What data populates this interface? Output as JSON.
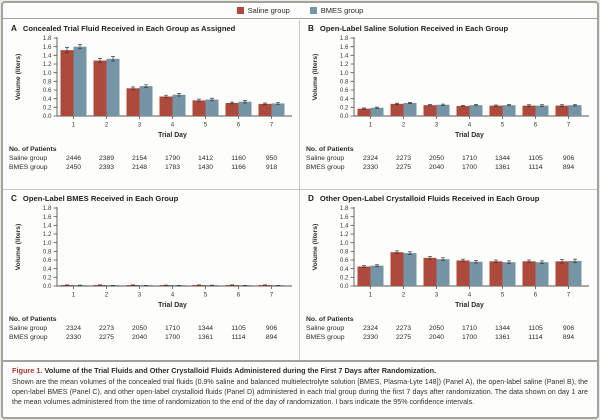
{
  "colors": {
    "saline": "#ad4a3c",
    "bmes": "#7595a6",
    "axis": "#555550",
    "text": "#3b3b3b",
    "error_bar": "#3a3a3a",
    "caption_accent": "#ad352a",
    "frame_border": "#a3a29b"
  },
  "legend": {
    "items": [
      {
        "label": "Saline group",
        "color": "#ad4a3c"
      },
      {
        "label": "BMES group",
        "color": "#7595a6"
      }
    ]
  },
  "table_labels": {
    "patients_header": "No. of Patients",
    "saline_row": "Saline group",
    "bmes_row": "BMES group"
  },
  "chart_data": [
    {
      "panel": "A",
      "type": "bar",
      "title": "Concealed Trial Fluid Received in Each Group as Assigned",
      "xlabel": "Trial Day",
      "ylabel": "Volume (liters)",
      "ylim": [
        0,
        1.8
      ],
      "ytick_step": 0.2,
      "categories": [
        "1",
        "2",
        "3",
        "4",
        "5",
        "6",
        "7"
      ],
      "series": [
        {
          "name": "Saline group",
          "values": [
            1.52,
            1.28,
            0.64,
            0.45,
            0.36,
            0.3,
            0.28
          ],
          "errors": [
            0.06,
            0.05,
            0.03,
            0.03,
            0.03,
            0.02,
            0.02
          ]
        },
        {
          "name": "BMES group",
          "values": [
            1.6,
            1.32,
            0.69,
            0.49,
            0.38,
            0.33,
            0.29
          ],
          "errors": [
            0.05,
            0.05,
            0.03,
            0.03,
            0.03,
            0.03,
            0.02
          ]
        }
      ],
      "patients": {
        "saline": [
          2446,
          2389,
          2154,
          1790,
          1412,
          1160,
          950
        ],
        "bmes": [
          2450,
          2393,
          2148,
          1783,
          1430,
          1166,
          918
        ]
      }
    },
    {
      "panel": "B",
      "type": "bar",
      "title": "Open-Label Saline Solution Received in Each Group",
      "xlabel": "Trial Day",
      "ylabel": "Volume (liters)",
      "ylim": [
        0,
        1.8
      ],
      "ytick_step": 0.2,
      "categories": [
        "1",
        "2",
        "3",
        "4",
        "5",
        "6",
        "7"
      ],
      "series": [
        {
          "name": "Saline group",
          "values": [
            0.17,
            0.28,
            0.25,
            0.23,
            0.24,
            0.24,
            0.24
          ],
          "errors": [
            0.015,
            0.015,
            0.015,
            0.015,
            0.015,
            0.02,
            0.02
          ]
        },
        {
          "name": "BMES group",
          "values": [
            0.19,
            0.3,
            0.26,
            0.25,
            0.25,
            0.24,
            0.25
          ],
          "errors": [
            0.015,
            0.015,
            0.015,
            0.015,
            0.015,
            0.02,
            0.02
          ]
        }
      ],
      "patients": {
        "saline": [
          2324,
          2273,
          2050,
          1710,
          1344,
          1105,
          906
        ],
        "bmes": [
          2330,
          2275,
          2040,
          1700,
          1361,
          1114,
          894
        ]
      }
    },
    {
      "panel": "C",
      "type": "bar",
      "title": "Open-Label BMES Received in Each Group",
      "xlabel": "Trial Day",
      "ylabel": "Volume (liters)",
      "ylim": [
        0,
        1.8
      ],
      "ytick_step": 0.2,
      "categories": [
        "1",
        "2",
        "3",
        "4",
        "5",
        "6",
        "7"
      ],
      "series": [
        {
          "name": "Saline group",
          "values": [
            0.02,
            0.02,
            0.02,
            0.015,
            0.02,
            0.02,
            0.02
          ],
          "errors": [
            0.006,
            0.006,
            0.006,
            0.005,
            0.006,
            0.006,
            0.006
          ]
        },
        {
          "name": "BMES group",
          "values": [
            0.015,
            0.01,
            0.01,
            0.01,
            0.015,
            0.01,
            0.01
          ],
          "errors": [
            0.005,
            0.004,
            0.004,
            0.004,
            0.005,
            0.004,
            0.004
          ]
        }
      ],
      "patients": {
        "saline": [
          2324,
          2273,
          2050,
          1710,
          1344,
          1105,
          906
        ],
        "bmes": [
          2330,
          2275,
          2040,
          1700,
          1361,
          1114,
          894
        ]
      }
    },
    {
      "panel": "D",
      "type": "bar",
      "title": "Other Open-Label Crystalloid Fluids Received in Each Group",
      "xlabel": "Trial Day",
      "ylabel": "Volume (liters)",
      "ylim": [
        0,
        1.8
      ],
      "ytick_step": 0.2,
      "categories": [
        "1",
        "2",
        "3",
        "4",
        "5",
        "6",
        "7"
      ],
      "series": [
        {
          "name": "Saline group",
          "values": [
            0.45,
            0.78,
            0.65,
            0.59,
            0.57,
            0.57,
            0.57
          ],
          "errors": [
            0.02,
            0.03,
            0.03,
            0.03,
            0.03,
            0.03,
            0.04
          ]
        },
        {
          "name": "BMES group",
          "values": [
            0.47,
            0.76,
            0.62,
            0.56,
            0.55,
            0.55,
            0.58
          ],
          "errors": [
            0.02,
            0.03,
            0.03,
            0.03,
            0.03,
            0.03,
            0.04
          ]
        }
      ],
      "patients": {
        "saline": [
          2324,
          2273,
          2050,
          1710,
          1344,
          1105,
          906
        ],
        "bmes": [
          2330,
          2275,
          2040,
          1700,
          1361,
          1114,
          894
        ]
      }
    }
  ],
  "caption": {
    "label": "Figure 1.",
    "title": "Volume of the Trial Fluids and Other Crystalloid Fluids Administered during the First 7 Days after Randomization.",
    "body": "Shown are the mean volumes of the concealed trial fluids (0.9% saline and balanced multielectrolyte solution [BMES, Plasma-Lyte 148]) (Panel A), the open-label saline (Panel B), the open-label BMES (Panel C), and other open-label crystalloid fluids (Panel D) administered in each trial group during the first 7 days after randomization. The data shown on day 1 are the mean volumes administered from the time of randomization to the end of the day of randomization. I bars indicate the 95% confidence intervals."
  }
}
